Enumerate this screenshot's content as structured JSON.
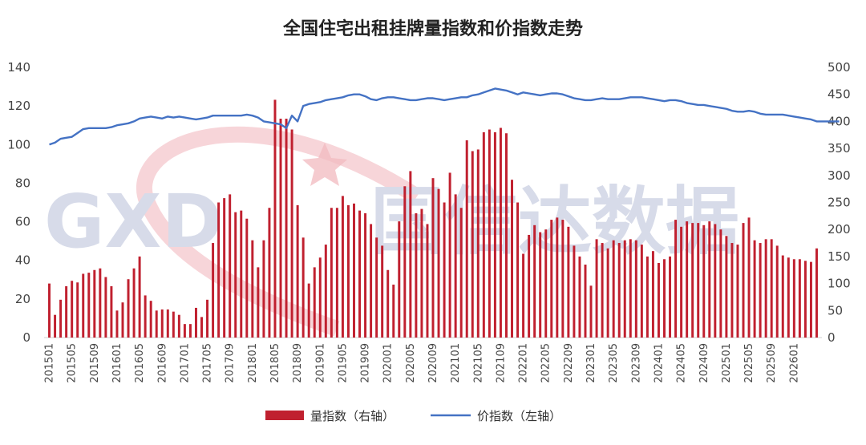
{
  "chart_data": {
    "type": "bar+line",
    "title": "全国住宅出租挂牌量指数和价指数走势",
    "watermark": "国信达数据",
    "watermark_logo": "GXD",
    "left_axis": {
      "ylim": [
        0,
        140
      ],
      "ticks": [
        "0",
        "20",
        "40",
        "60",
        "80",
        "100",
        "120",
        "140"
      ]
    },
    "right_axis": {
      "ylim": [
        0,
        500
      ],
      "ticks": [
        "0",
        "50",
        "100",
        "150",
        "200",
        "250",
        "300",
        "350",
        "400",
        "450",
        "500"
      ]
    },
    "x_tick_labels": [
      "201501",
      "201505",
      "201509",
      "201601",
      "201605",
      "201609",
      "201701",
      "201705",
      "201709",
      "201801",
      "201805",
      "201809",
      "201901",
      "201905",
      "201909",
      "202001",
      "202005",
      "202009",
      "202101",
      "202105",
      "202109",
      "202201",
      "202205",
      "202209",
      "202301",
      "202305",
      "202309",
      "202401",
      "202405",
      "202409",
      "202501",
      "202505",
      "202509",
      "202601"
    ],
    "series": [
      {
        "name": "量指数（右轴）",
        "type": "bar",
        "axis": "right",
        "color": "#c0202f",
        "values": [
          100,
          42,
          70,
          95,
          105,
          102,
          118,
          120,
          125,
          128,
          112,
          95,
          50,
          65,
          108,
          128,
          150,
          78,
          68,
          50,
          52,
          52,
          48,
          42,
          25,
          25,
          55,
          38,
          70,
          175,
          250,
          258,
          265,
          232,
          235,
          220,
          180,
          130,
          180,
          240,
          440,
          405,
          405,
          385,
          245,
          185,
          100,
          130,
          148,
          172,
          240,
          240,
          262,
          245,
          248,
          235,
          230,
          210,
          185,
          170,
          125,
          98,
          215,
          280,
          308,
          230,
          238,
          210,
          295,
          275,
          250,
          305,
          265,
          240,
          365,
          345,
          348,
          380,
          385,
          380,
          388,
          378,
          292,
          250,
          155,
          190,
          208,
          195,
          200,
          218,
          222,
          218,
          205,
          170,
          150,
          135,
          96,
          182,
          175,
          165,
          180,
          175,
          180,
          182,
          180,
          172,
          150,
          160,
          138,
          145,
          150,
          218,
          205,
          215,
          212,
          212,
          208,
          215,
          210,
          200,
          188,
          175,
          172,
          212,
          222,
          180,
          175,
          182,
          182,
          170,
          152,
          148,
          145,
          145,
          142,
          140,
          165
        ]
      },
      {
        "name": "价指数（左轴）",
        "type": "line",
        "axis": "left",
        "color": "#4472c4",
        "values": [
          100,
          101,
          103,
          103.5,
          104,
          106,
          108,
          108.5,
          108.5,
          108.5,
          108.5,
          109,
          110,
          110.5,
          111,
          112,
          113.5,
          114,
          114.5,
          114,
          113.5,
          114.5,
          114,
          114.5,
          114,
          113.5,
          113,
          113.5,
          114,
          115,
          115,
          115,
          115,
          115,
          115,
          115.5,
          115,
          114,
          112,
          111.5,
          111,
          110.5,
          108.5,
          115,
          112,
          120,
          121,
          121.5,
          122,
          123,
          123.5,
          124,
          124.5,
          125.5,
          126,
          126,
          125,
          123.5,
          123,
          124,
          124.5,
          124.5,
          124,
          123.5,
          123,
          123,
          123.5,
          124,
          124,
          123.5,
          123,
          123.5,
          124,
          124.5,
          124.5,
          125.5,
          126,
          127,
          128,
          129,
          128.5,
          128,
          127,
          126,
          127,
          126.5,
          126,
          125.5,
          126,
          126.5,
          126.5,
          126,
          125,
          124,
          123.5,
          123,
          123,
          123.5,
          124,
          123.5,
          123.5,
          123.5,
          124,
          124.5,
          124.5,
          124.5,
          124,
          123.5,
          123,
          122.5,
          123,
          123,
          122.5,
          121.5,
          121,
          120.5,
          120.5,
          120,
          119.5,
          119,
          118.5,
          117.5,
          117,
          117,
          117.5,
          117,
          116,
          115.5,
          115.5,
          115.5,
          115.5,
          115,
          114.5,
          114,
          113.5,
          113,
          112,
          112,
          112,
          112,
          112
        ]
      }
    ],
    "legend_position": "bottom",
    "grid": false
  }
}
